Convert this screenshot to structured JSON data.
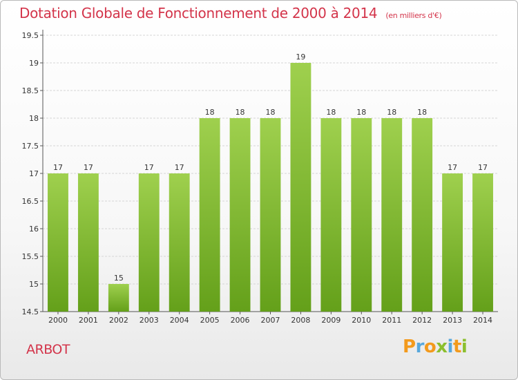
{
  "header": {
    "title": "Dotation Globale de Fonctionnement de 2000 à 2014",
    "subtitle": "(en milliers d'€)"
  },
  "footer": {
    "commune": "ARBOT",
    "brand": {
      "letters": [
        "P",
        "r",
        "o",
        "x",
        "i",
        "t",
        "i"
      ],
      "colors": [
        "#f39a1c",
        "#58a8dc",
        "#f39a1c",
        "#8bbf2e",
        "#58a8dc",
        "#f39a1c",
        "#8bbf2e"
      ]
    }
  },
  "chart_data": {
    "type": "bar",
    "categories": [
      "2000",
      "2001",
      "2002",
      "2003",
      "2004",
      "2005",
      "2006",
      "2007",
      "2008",
      "2009",
      "2010",
      "2011",
      "2012",
      "2013",
      "2014"
    ],
    "values": [
      17,
      17,
      15,
      17,
      17,
      18,
      18,
      18,
      19,
      18,
      18,
      18,
      18,
      17,
      17
    ],
    "data_labels": [
      "17",
      "17",
      "15",
      "17",
      "17",
      "18",
      "18",
      "18",
      "19",
      "18",
      "18",
      "18",
      "18",
      "17",
      "17"
    ],
    "ylim": [
      14.5,
      19.5
    ],
    "yticks": [
      14.5,
      15,
      15.5,
      16,
      16.5,
      17,
      17.5,
      18,
      18.5,
      19,
      19.5
    ],
    "ytick_labels": [
      "14.5",
      "15",
      "15.5",
      "16",
      "16.5",
      "17",
      "17.5",
      "18",
      "18.5",
      "19",
      "19.5"
    ],
    "grid": true,
    "bar_color_top": "#9fd04e",
    "bar_color_bottom": "#64a01a",
    "grid_color": "#d5d5d5"
  }
}
